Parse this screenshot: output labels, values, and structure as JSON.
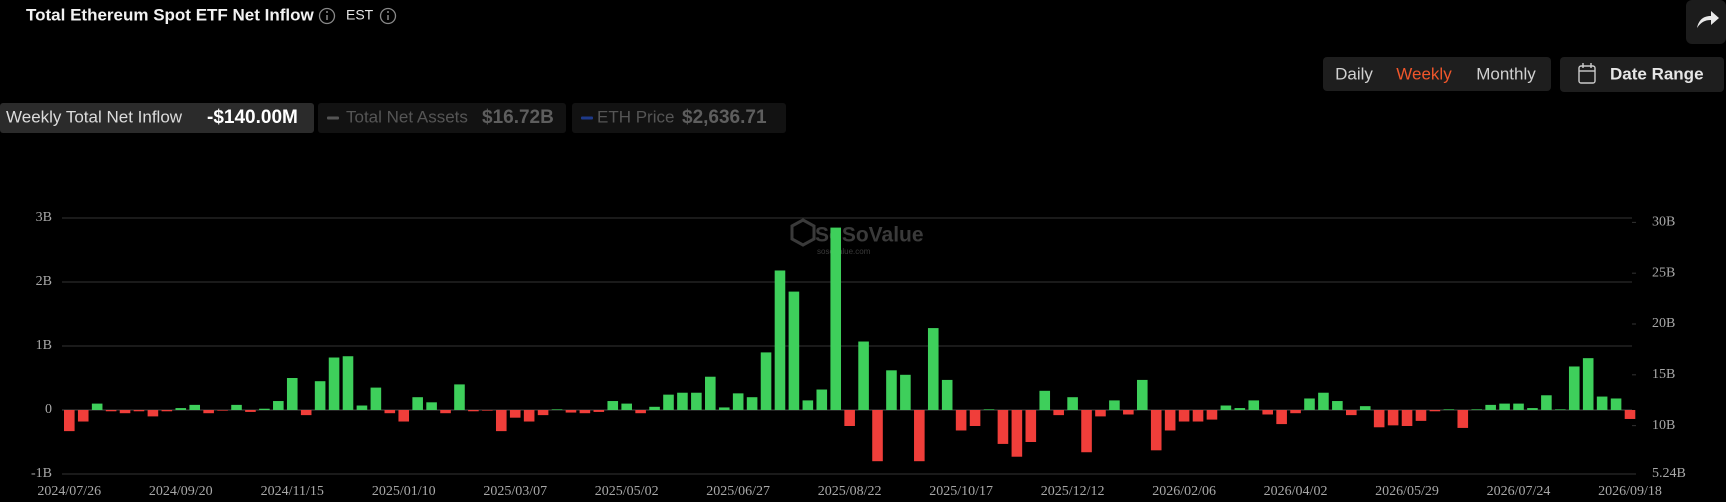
{
  "header": {
    "title": "Total Ethereum Spot ETF Net Inflow",
    "timezone": "EST"
  },
  "controls": {
    "timeframes": [
      "Daily",
      "Weekly",
      "Monthly"
    ],
    "active_timeframe": 1,
    "active_color": "#f0562b",
    "date_range": "Date Range"
  },
  "legend": [
    {
      "label": "Weekly Total Net Inflow",
      "value": "-$140.00M",
      "active": true,
      "color": "#3ecf5b"
    },
    {
      "label": "Total Net Assets",
      "value": "$16.72B",
      "active": false,
      "color": "#555555"
    },
    {
      "label": "ETH Price",
      "value": "$2,636.71",
      "active": false,
      "color": "#1e3a8a"
    }
  ],
  "chart_data": {
    "type": "bar",
    "watermark": "SoSoValue",
    "watermark_url": "sosovalue.com",
    "categories": [
      "2024/07/26",
      null,
      null,
      null,
      null,
      null,
      null,
      null,
      "2024/09/20",
      null,
      null,
      null,
      null,
      null,
      null,
      null,
      "2024/11/15",
      null,
      null,
      null,
      null,
      null,
      null,
      null,
      "2025/01/10",
      null,
      null,
      null,
      null,
      null,
      null,
      null,
      "2025/03/07",
      null,
      null,
      null,
      null,
      null,
      null,
      null,
      "2025/05/02",
      null,
      null,
      null,
      null,
      null,
      null,
      null,
      "2025/06/27",
      null,
      null,
      null,
      null,
      null,
      null,
      null,
      "2025/08/22",
      null,
      null,
      null,
      null,
      null,
      null,
      null,
      "2025/10/17",
      null,
      null,
      null,
      null,
      null,
      null,
      null,
      "2025/12/12",
      null,
      null,
      null,
      null,
      null,
      null,
      null,
      "2026/02/06",
      null,
      null,
      null,
      null,
      null,
      null,
      null,
      "2026/04/02",
      null,
      null,
      null,
      null,
      null,
      null,
      null,
      "2026/05/29",
      null,
      null,
      null,
      null,
      null,
      null,
      null,
      "2026/07/24",
      null,
      null,
      null,
      null,
      null,
      null,
      null,
      "2026/09/18"
    ],
    "series": [
      {
        "positive_color": "#3ecf5b",
        "negative_color": "#f03e3a",
        "values": [
          -0.33,
          -0.18,
          0.1,
          -0.02,
          -0.05,
          -0.02,
          -0.1,
          -0.02,
          0.03,
          0.08,
          -0.05,
          -0.01,
          0.08,
          -0.03,
          0.02,
          0.14,
          0.5,
          -0.08,
          0.45,
          0.82,
          0.84,
          0.07,
          0.35,
          -0.05,
          -0.18,
          0.2,
          0.12,
          -0.05,
          0.4,
          -0.02,
          -0.01,
          -0.33,
          -0.12,
          -0.18,
          -0.08,
          0.01,
          -0.04,
          -0.05,
          -0.03,
          0.14,
          0.1,
          -0.05,
          0.05,
          0.24,
          0.27,
          0.27,
          0.52,
          0.04,
          0.26,
          0.2,
          0.9,
          2.18,
          1.85,
          0.15,
          0.32,
          2.85,
          -0.25,
          1.07,
          -0.8,
          0.62,
          0.55,
          -0.8,
          1.28,
          0.47,
          -0.32,
          -0.25,
          0.01,
          -0.53,
          -0.73,
          -0.5,
          0.3,
          -0.08,
          0.2,
          -0.66,
          -0.1,
          0.15,
          -0.07,
          0.47,
          -0.63,
          -0.32,
          -0.18,
          -0.18,
          -0.15,
          0.07,
          0.03,
          0.15,
          -0.07,
          -0.22,
          -0.05,
          0.18,
          0.27,
          0.14,
          -0.08,
          0.06,
          -0.27,
          -0.24,
          -0.25,
          -0.17,
          -0.02,
          0.01,
          -0.28,
          0.01,
          0.08,
          0.1,
          0.1,
          0.03,
          0.23,
          0.01,
          0.68,
          0.81,
          0.21,
          0.18,
          -0.14
        ]
      }
    ],
    "ylim": [
      -1,
      3
    ],
    "yticks": [
      {
        "value": -1,
        "label": "-1B"
      },
      0,
      {
        "value": 1,
        "label": "1B"
      },
      {
        "value": 2,
        "label": "2B"
      },
      {
        "value": 3,
        "label": "3B"
      }
    ],
    "y2lim": [
      5.24,
      30.43
    ],
    "y2ticks": [
      {
        "value": 5.24,
        "label": "5.24B"
      },
      {
        "value": 10,
        "label": "10B"
      },
      {
        "value": 15,
        "label": "15B"
      },
      {
        "value": 20,
        "label": "20B"
      },
      {
        "value": 25,
        "label": "25B"
      },
      {
        "value": 30,
        "label": "30B"
      }
    ],
    "grid": true
  }
}
